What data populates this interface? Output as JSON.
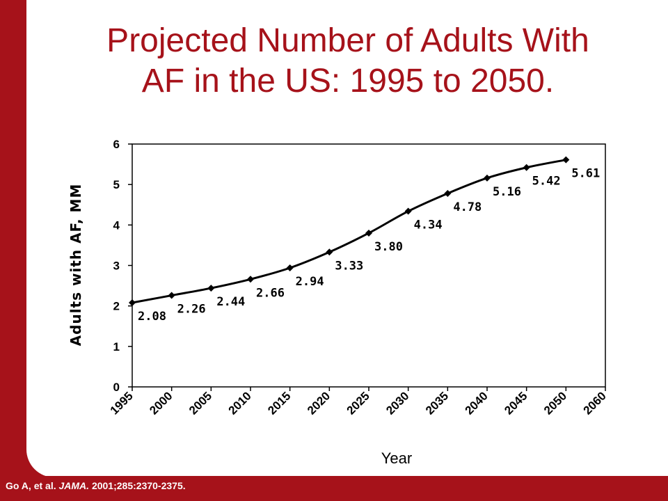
{
  "slide": {
    "title_line1": "Projected Number of Adults With",
    "title_line2": "AF in the US: 1995 to 2050.",
    "footnote_authors": "Go A, et al.",
    "footnote_journal": "JAMA.",
    "footnote_citation": "2001;285:2370-2375.",
    "colors": {
      "accent": "#a6121a",
      "background": "#ffffff"
    }
  },
  "chart_data": {
    "type": "line",
    "title": "",
    "xlabel": "Year",
    "ylabel": "Adults with AF, MM",
    "categories": [
      "1995",
      "2000",
      "2005",
      "2010",
      "2015",
      "2020",
      "2025",
      "2030",
      "2035",
      "2040",
      "2045",
      "2050",
      "2060"
    ],
    "series": [
      {
        "values": [
          2.08,
          2.26,
          2.44,
          2.66,
          2.94,
          3.33,
          3.8,
          4.34,
          4.78,
          5.16,
          5.42,
          5.61,
          null
        ]
      }
    ],
    "data_labels": [
      "2.08",
      "2.26",
      "2.44",
      "2.66",
      "2.94",
      "3.33",
      "3.80",
      "4.34",
      "4.78",
      "5.16",
      "5.42",
      "5.61"
    ],
    "ylim": [
      0,
      6
    ],
    "yticks": [
      "0",
      "1",
      "2",
      "3",
      "4",
      "5",
      "6"
    ],
    "grid": false,
    "legend": "none"
  }
}
